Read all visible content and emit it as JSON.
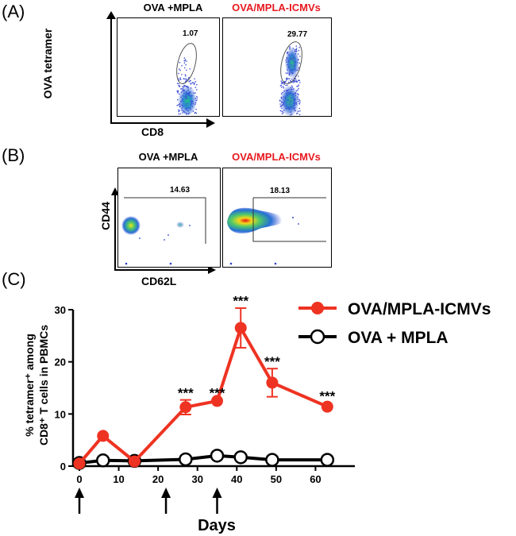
{
  "panels": {
    "a": {
      "label": "(A)",
      "title_left": "OVA +MPLA",
      "title_right": "OVA/MPLA-ICMVs",
      "ylabel": "OVA tetramer",
      "xlabel": "CD8",
      "gate_left": "1.07",
      "gate_right": "29.77"
    },
    "b": {
      "label": "(B)",
      "title_left": "OVA +MPLA",
      "title_right": "OVA/MPLA-ICMVs",
      "ylabel": "CD44",
      "xlabel": "CD62L",
      "gate_left": "14.63",
      "gate_right": "18.13"
    },
    "c": {
      "label": "(C)"
    }
  },
  "colors": {
    "icmv": "#ee3322",
    "mpla": "#000000",
    "title_red": "#e8191f"
  },
  "chart_data": {
    "type": "line",
    "xlabel": "Days",
    "ylabel_line1": "% tetramer⁺ among",
    "ylabel_line2": "CD8⁺ T cells in PBMCs",
    "xlim": [
      0,
      70
    ],
    "ylim": [
      0,
      30
    ],
    "xticks": [
      0,
      10,
      20,
      30,
      40,
      50,
      60
    ],
    "xtick_labels": [
      "0",
      "10",
      "20",
      "30",
      "40",
      "50",
      "60"
    ],
    "yticks": [
      0,
      10,
      20,
      30
    ],
    "ytick_labels": [
      "0",
      "10",
      "20",
      "30"
    ],
    "series": [
      {
        "name": "OVA/MPLA-ICMVs",
        "x": [
          0,
          6,
          14,
          27,
          35,
          41,
          49,
          63
        ],
        "y": [
          0.5,
          5.8,
          0.9,
          11.3,
          12.5,
          26.5,
          16.0,
          11.4
        ],
        "err": [
          0,
          0,
          0,
          1.4,
          0,
          3.8,
          2.7,
          0
        ]
      },
      {
        "name": "OVA + MPLA",
        "x": [
          0,
          6,
          14,
          27,
          35,
          41,
          49,
          63
        ],
        "y": [
          0.6,
          1.1,
          1.0,
          1.3,
          2.0,
          1.7,
          1.2,
          1.2
        ],
        "err": [
          0,
          0,
          0,
          0,
          0,
          0,
          0,
          0
        ]
      }
    ],
    "annotations": [
      {
        "x": 27,
        "y": 13.2,
        "text": "***"
      },
      {
        "x": 35,
        "y": 13.2,
        "text": "***"
      },
      {
        "x": 41,
        "y": 30.8,
        "text": "***"
      },
      {
        "x": 49,
        "y": 19.2,
        "text": "***"
      },
      {
        "x": 63,
        "y": 12.6,
        "text": "***"
      }
    ],
    "immunization_days": [
      0,
      22,
      35
    ]
  }
}
